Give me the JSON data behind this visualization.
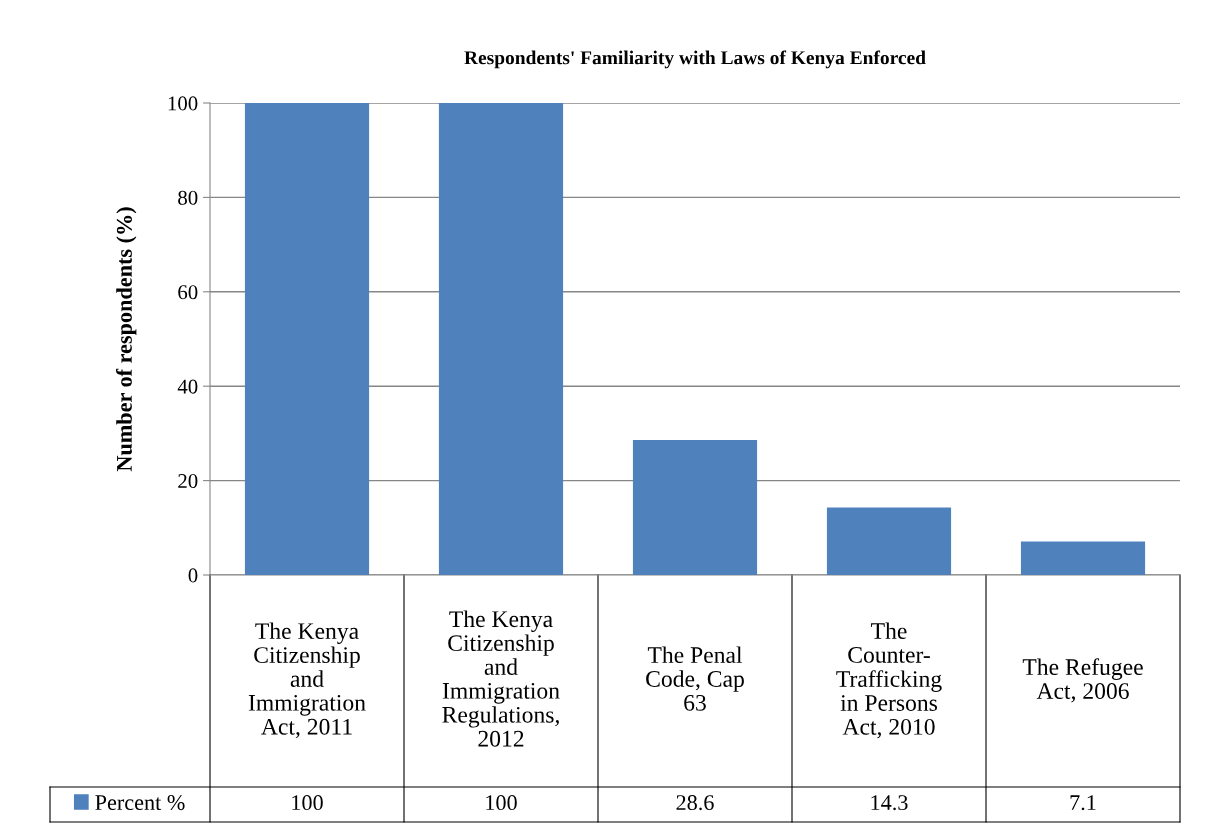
{
  "chart_data": {
    "type": "bar",
    "title": "Respondents' Familiarity with Laws of Kenya Enforced",
    "ylabel": "Number of respondents (%)",
    "categories": [
      "The Kenya\nCitizenship\nand\nImmigration\nAct, 2011",
      "The Kenya\nCitizenship\nand\nImmigration\nRegulations,\n2012",
      "The Penal\nCode, Cap\n63",
      "The\nCounter-\nTrafficking\nin Persons\nAct, 2010",
      "The Refugee\nAct, 2006"
    ],
    "series": [
      {
        "name": "Percent %",
        "color": "#4f81bd",
        "values": [
          100,
          100,
          28.6,
          14.3,
          7.1
        ]
      }
    ],
    "ylim": [
      0,
      100
    ],
    "yticks": [
      0,
      20,
      40,
      60,
      80,
      100
    ],
    "grid": "y",
    "legend": "bottom left",
    "data_labels": true
  }
}
